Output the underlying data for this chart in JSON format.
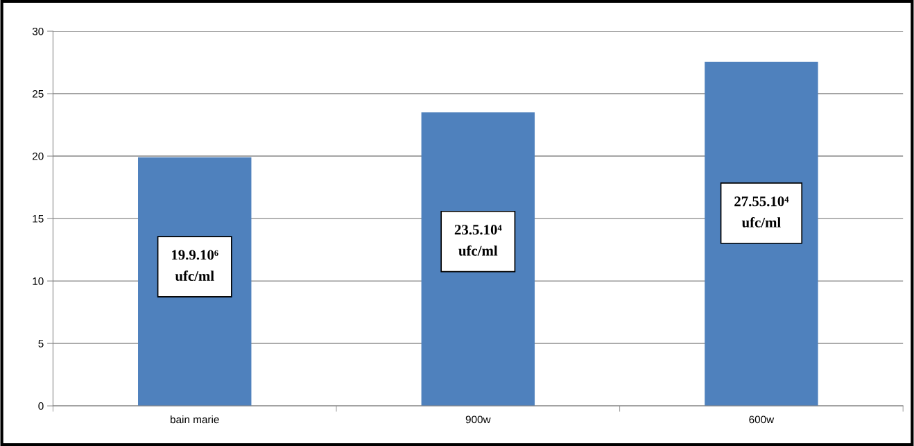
{
  "chart_data": {
    "type": "bar",
    "categories": [
      "bain marie",
      "900w",
      "600w"
    ],
    "values": [
      19.9,
      23.5,
      27.55
    ],
    "color": "#4f81bd",
    "ylim": [
      0,
      30
    ],
    "yticks": [
      0,
      5,
      10,
      15,
      20,
      25,
      30
    ],
    "grid": "y",
    "annotations": [
      "19.9.10⁶\nufc/ml",
      "23.5.10⁴\nufc/ml",
      "27.55.10⁴\nufc/ml"
    ]
  }
}
